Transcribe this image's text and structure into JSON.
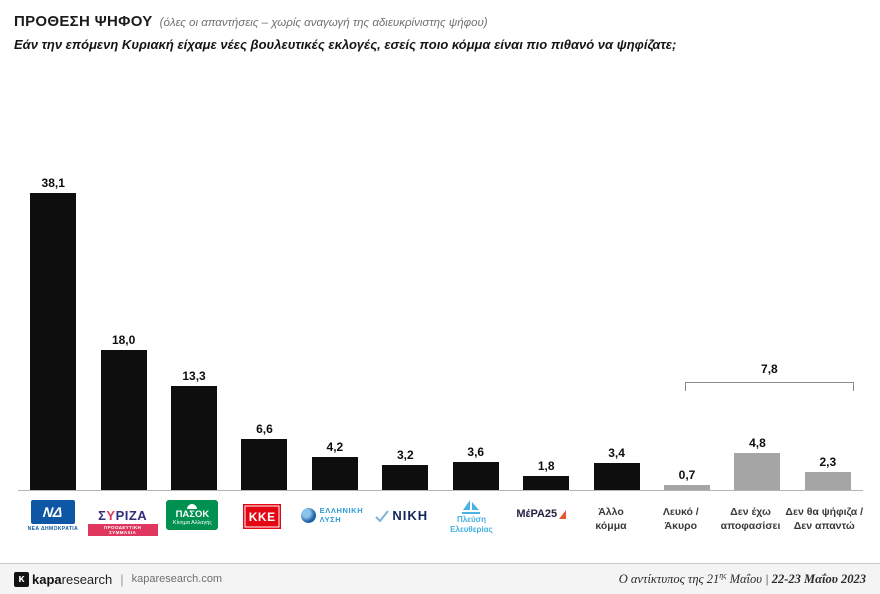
{
  "header": {
    "title": "ΠΡΟΘΕΣΗ ΨΗΦΟΥ",
    "title_note": "(όλες οι απαντήσεις – χωρίς αναγωγή της αδιευκρίνιστης ψήφου)",
    "question": "Εάν την επόμενη Κυριακή είχαμε νέες βουλευτικές εκλογές, εσείς ποιο κόμμα είναι πιο πιθανό να ψηφίζατε;"
  },
  "chart_data": {
    "type": "bar",
    "title": "ΠΡΟΘΕΣΗ ΨΗΦΟΥ (όλες οι απαντήσεις – χωρίς αναγωγή της αδιευκρίνιστης ψήφου)",
    "categories": [
      "ΝΕΑ ΔΗΜΟΚΡΑΤΙΑ",
      "ΣΥΡΙΖΑ ΠΡΟΟΔΕΥΤΙΚΗ ΣΥΜΜΑΧΙΑ",
      "ΠΑΣΟΚ Κίνημα Αλλαγής",
      "ΚΚΕ",
      "ΕΛΛΗΝΙΚΗ ΛΥΣΗ",
      "ΝΙΚΗ",
      "Πλεύση Ελευθερίας",
      "ΜέΡΑ25",
      "Άλλο κόμμα",
      "Λευκό / Άκυρο",
      "Δεν έχω αποφασίσει",
      "Δεν θα ψήφιζα / Δεν απαντώ"
    ],
    "values": [
      38.1,
      18.0,
      13.3,
      6.6,
      4.2,
      3.2,
      3.6,
      1.8,
      3.4,
      0.7,
      4.8,
      2.3
    ],
    "value_labels": [
      "38,1",
      "18,0",
      "13,3",
      "6,6",
      "4,2",
      "3,2",
      "3,6",
      "1,8",
      "3,4",
      "0,7",
      "4,8",
      "2,3"
    ],
    "bar_styles": [
      "solid",
      "solid",
      "solid",
      "solid",
      "solid",
      "solid",
      "solid",
      "solid",
      "solid",
      "muted",
      "muted",
      "muted"
    ],
    "colors": {
      "solid": "#0e0e0e",
      "muted": "#a5a5a5"
    },
    "annotation": {
      "label": "7,8",
      "from_index": 9,
      "to_index": 11,
      "covers": [
        "Λευκό / Άκυρο",
        "Δεν έχω αποφασίσει",
        "Δεν θα ψήφιζα / Δεν απαντώ"
      ]
    },
    "ylim": [
      0,
      40
    ],
    "grid": false,
    "legend": false
  },
  "parties": [
    {
      "abbr": "ΝΔ",
      "sub": "ΝΕΑ ΔΗΜΟΚΡΑΤΙΑ"
    },
    {
      "s1": "Σ",
      "s2": "Υ",
      "s3": "ΡΙΖΑ",
      "sub": "ΠΡΟΟΔΕΥΤΙΚΗ ΣΥΜΜΑΧΙΑ"
    },
    {
      "main": "ΠΑΣΟΚ",
      "sub": "Κίνημα Αλλαγής"
    },
    {
      "main": "ΚΚΕ"
    },
    {
      "line1": "ΕΛΛΗΝΙΚΗ",
      "line2": "ΛΥΣΗ"
    },
    {
      "main": "ΝΙΚΗ"
    },
    {
      "line1": "Πλεύση",
      "line2": "Ελευθερίας"
    },
    {
      "main": "ΜέΡΑ25"
    },
    {
      "line1": "Άλλο",
      "line2": "κόμμα"
    },
    {
      "line1": "Λευκό /",
      "line2": "Άκυρο"
    },
    {
      "line1": "Δεν έχω",
      "line2": "αποφασίσει"
    },
    {
      "line1": "Δεν θα ψήφιζα /",
      "line2": "Δεν απαντώ"
    }
  ],
  "footer": {
    "brand_mark": "κ",
    "brand_kapa": "kapa",
    "brand_research": "research",
    "separator": "|",
    "site": "kaparesearch.com",
    "note_prefix": "Ο αντίκτυπος της 21",
    "note_sup": "ης",
    "note_mid": " Μαΐου",
    "note_sep": " | ",
    "note_date": "22-23 Μαΐου 2023"
  }
}
